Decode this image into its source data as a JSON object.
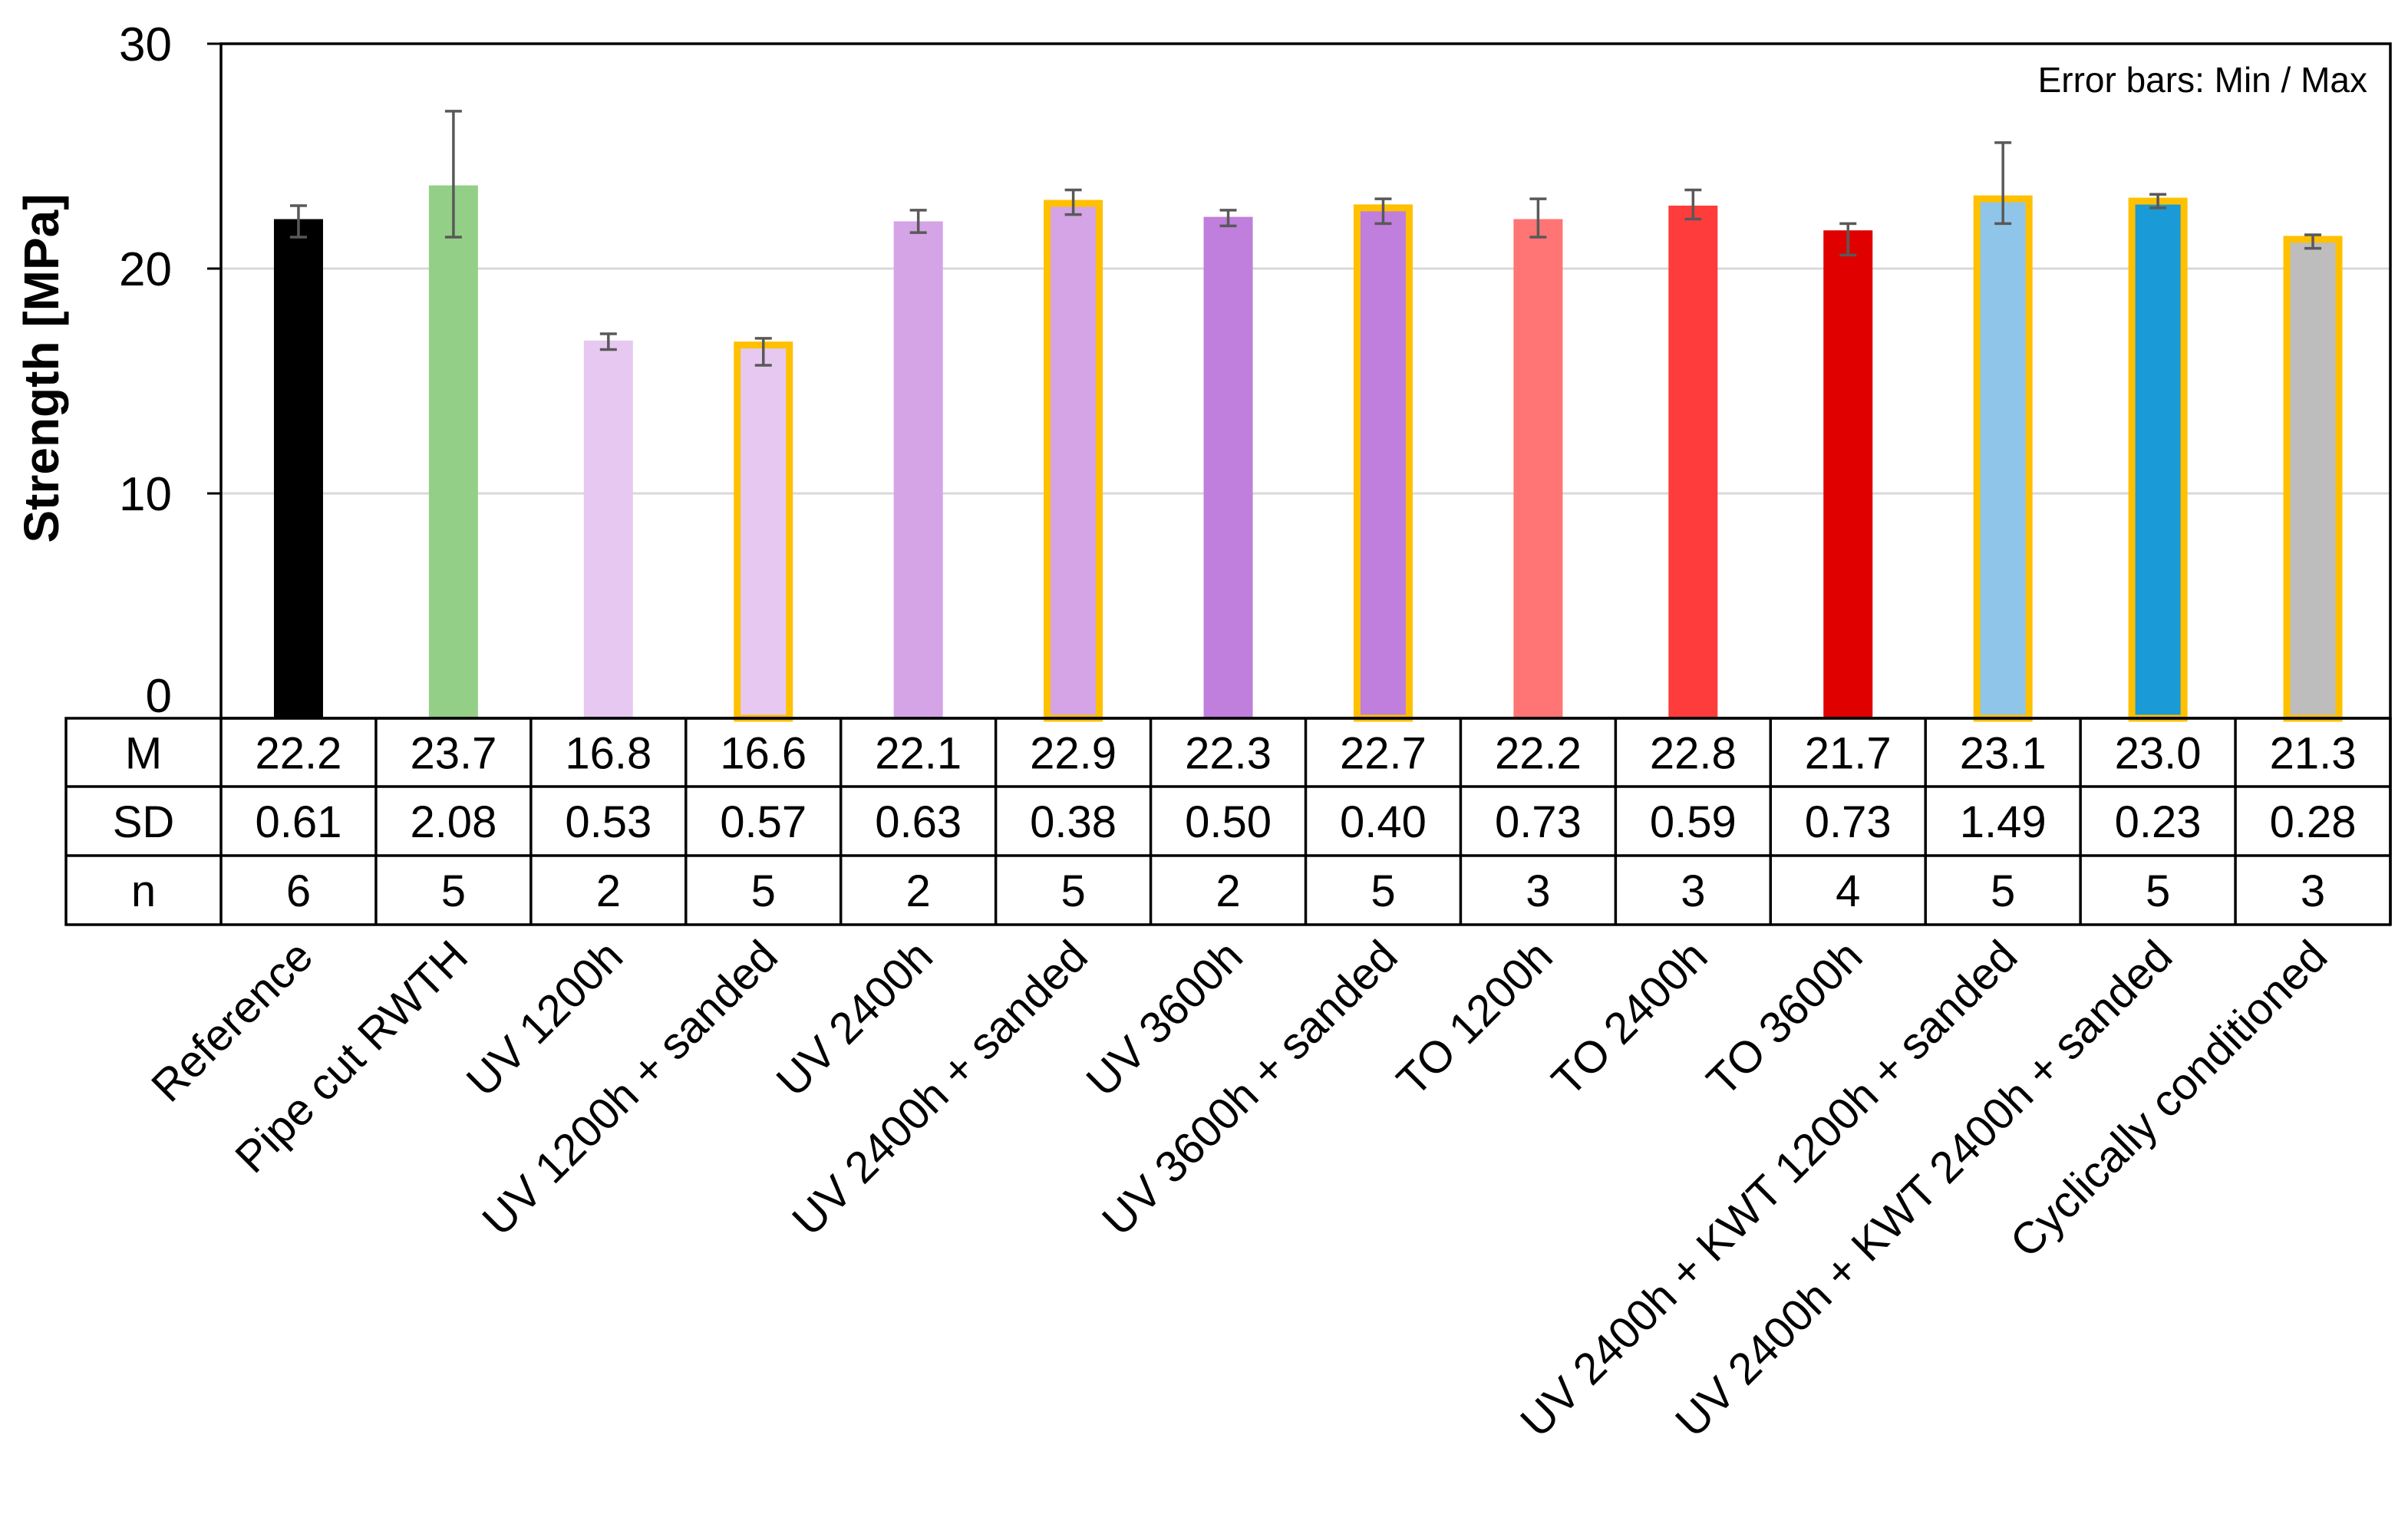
{
  "chart_data": {
    "type": "bar",
    "ylabel": "Strength [MPa]",
    "ylim": [
      0,
      30
    ],
    "yticks": [
      0,
      10,
      20,
      30
    ],
    "grid": true,
    "annotation": "Error bars: Min / Max",
    "categories": [
      "Reference",
      "Pipe cut RWTH",
      "UV 1200h",
      "UV 1200h + sanded",
      "UV 2400h",
      "UV 2400h + sanded",
      "UV 3600h",
      "UV 3600h + sanded",
      "TO 1200h",
      "TO 2400h",
      "TO 3600h",
      "UV 2400h + KWT 1200h + sanded",
      "UV 2400h + KWT 2400h + sanded",
      "Cyclically conditioned"
    ],
    "values": [
      22.2,
      23.7,
      16.8,
      16.6,
      22.1,
      22.9,
      22.3,
      22.7,
      22.2,
      22.8,
      21.7,
      23.1,
      23.0,
      21.3
    ],
    "err_min": [
      21.4,
      21.4,
      16.4,
      15.7,
      21.6,
      22.4,
      21.9,
      22.0,
      21.4,
      22.2,
      20.6,
      22.0,
      22.7,
      20.9
    ],
    "err_max": [
      22.8,
      27.0,
      17.1,
      16.9,
      22.6,
      23.5,
      22.6,
      23.1,
      23.1,
      23.5,
      22.0,
      25.6,
      23.3,
      21.5
    ],
    "colors": [
      "#000000",
      "#93cf87",
      "#e6c8f0",
      "#e6c8f0",
      "#d4a4e6",
      "#d4a4e6",
      "#c07fdc",
      "#c07fdc",
      "#ff7474",
      "#ff3c3c",
      "#e00000",
      "#8fc5e8",
      "#1a9ad6",
      "#bdbdbd"
    ],
    "highlighted": [
      false,
      false,
      false,
      true,
      false,
      true,
      false,
      true,
      false,
      false,
      false,
      true,
      true,
      true
    ],
    "highlight_color": "#ffc000",
    "table": {
      "row_labels": [
        "M",
        "SD",
        "n"
      ],
      "M": [
        "22.2",
        "23.7",
        "16.8",
        "16.6",
        "22.1",
        "22.9",
        "22.3",
        "22.7",
        "22.2",
        "22.8",
        "21.7",
        "23.1",
        "23.0",
        "21.3"
      ],
      "SD": [
        "0.61",
        "2.08",
        "0.53",
        "0.57",
        "0.63",
        "0.38",
        "0.50",
        "0.40",
        "0.73",
        "0.59",
        "0.73",
        "1.49",
        "0.23",
        "0.28"
      ],
      "n": [
        "6",
        "5",
        "2",
        "5",
        "2",
        "5",
        "2",
        "5",
        "3",
        "3",
        "4",
        "5",
        "5",
        "3"
      ]
    }
  }
}
